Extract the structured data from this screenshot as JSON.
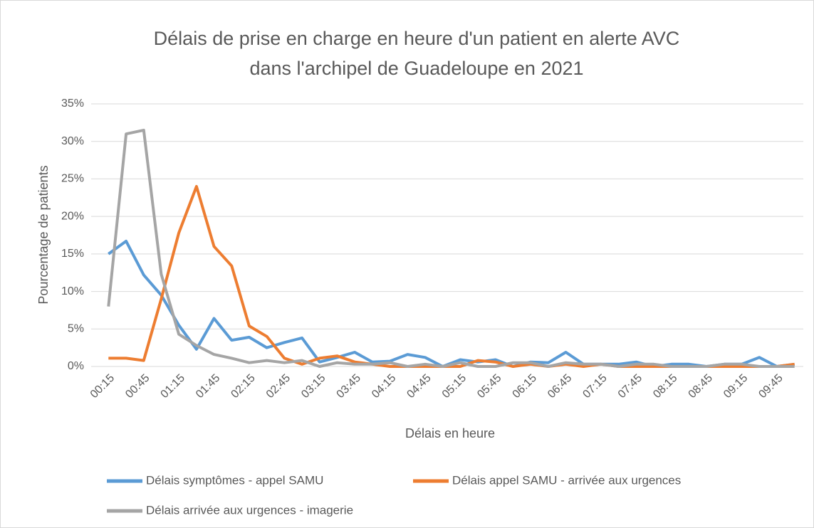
{
  "chart_data": {
    "type": "line",
    "title": "Délais de prise en charge en heure d'un patient en alerte AVC dans l'archipel de Guadeloupe en 2021",
    "title_lines": [
      "Délais de prise en charge en heure d'un patient en alerte AVC",
      "dans l'archipel de Guadeloupe en 2021"
    ],
    "x_label": "Délais en heure",
    "y_label": "Pourcentage de patients",
    "categories": [
      "00:15",
      null,
      "00:45",
      null,
      "01:15",
      null,
      "01:45",
      null,
      "02:15",
      null,
      "02:45",
      null,
      "03:15",
      null,
      "03:45",
      null,
      "04:15",
      null,
      "04:45",
      null,
      "05:15",
      null,
      "05:45",
      null,
      "06:15",
      null,
      "06:45",
      null,
      "07:15",
      null,
      "07:45",
      null,
      "08:15",
      null,
      "08:45",
      null,
      "09:15",
      null,
      "09:45",
      null
    ],
    "series": [
      {
        "name": "Délais symptômes - appel SAMU",
        "color": "#5b9bd5",
        "values": [
          15,
          16.7,
          12.2,
          9.5,
          5.5,
          2.3,
          6.4,
          3.5,
          3.9,
          2.5,
          3.2,
          3.8,
          0.6,
          1.2,
          1.9,
          0.6,
          0.7,
          1.6,
          1.2,
          0,
          0.9,
          0.6,
          0.9,
          0,
          0.6,
          0.5,
          1.9,
          0.3,
          0.3,
          0.3,
          0.6,
          0,
          0.3,
          0.3,
          0,
          0.3,
          0.3,
          1.2,
          0,
          0.3
        ]
      },
      {
        "name": "Délais appel SAMU - arrivée aux urgences",
        "color": "#ed7d31",
        "values": [
          1.1,
          1.1,
          0.8,
          9,
          17.8,
          24,
          16,
          13.4,
          5.4,
          4,
          1.1,
          0.3,
          1.1,
          1.4,
          0.6,
          0.3,
          0,
          0,
          0,
          0,
          0,
          0.8,
          0.6,
          0,
          0.3,
          0,
          0.3,
          0,
          0.3,
          0,
          0,
          0,
          0,
          0,
          0,
          0,
          0,
          0,
          0,
          0.3
        ]
      },
      {
        "name": "Délais arrivée aux urgences - imagerie",
        "color": "#a5a5a5",
        "values": [
          8,
          31,
          31.5,
          12.3,
          4.3,
          2.8,
          1.6,
          1.1,
          0.5,
          0.8,
          0.5,
          0.8,
          0,
          0.5,
          0.3,
          0.3,
          0.5,
          0,
          0.3,
          0,
          0.5,
          0,
          0,
          0.5,
          0.5,
          0,
          0.5,
          0.3,
          0.3,
          0,
          0.3,
          0.3,
          0,
          0,
          0,
          0.3,
          0.3,
          0,
          0,
          0
        ]
      }
    ],
    "ylim": [
      0,
      35
    ],
    "yticks": [
      {
        "value": 0,
        "label": "0%"
      },
      {
        "value": 5,
        "label": "5%"
      },
      {
        "value": 10,
        "label": "10%"
      },
      {
        "value": 15,
        "label": "15%"
      },
      {
        "value": 20,
        "label": "20%"
      },
      {
        "value": 25,
        "label": "25%"
      },
      {
        "value": 30,
        "label": "30%"
      },
      {
        "value": 35,
        "label": "35%"
      }
    ],
    "grid": true,
    "legend": "bottom"
  }
}
